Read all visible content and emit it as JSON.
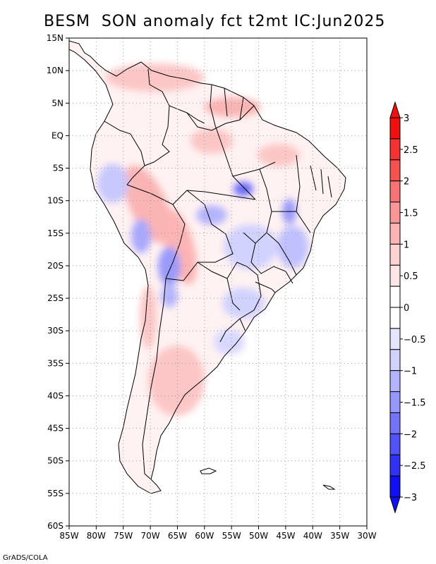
{
  "title": "BESM  SON anomaly fct t2mt IC:Jun2025",
  "credit": "GrADS/COLA",
  "map": {
    "lat_ticks": [
      "15N",
      "10N",
      "5N",
      "EQ",
      "5S",
      "10S",
      "15S",
      "20S",
      "25S",
      "30S",
      "35S",
      "40S",
      "45S",
      "50S",
      "55S",
      "60S"
    ],
    "lon_ticks": [
      "85W",
      "80W",
      "75W",
      "70W",
      "65W",
      "60W",
      "55W",
      "50W",
      "45W",
      "40W",
      "35W",
      "30W"
    ],
    "lat_range": [
      -60,
      15
    ],
    "lon_range": [
      -85,
      -30
    ],
    "grid_spacing_deg": 5,
    "grid_style": "dotted",
    "anomaly_units": "degC"
  },
  "colorbar": {
    "labels": [
      "3",
      "2.5",
      "2",
      "1.5",
      "1",
      "0.5",
      "0",
      "−0.5",
      "−1",
      "−1.5",
      "−2",
      "−2.5",
      "−3"
    ],
    "warm_colors": [
      "#f01010",
      "#f43232",
      "#f65252",
      "#f87474",
      "#fa9696",
      "#fcb4b4",
      "#fdd2d2",
      "#fee6e6",
      "#ffffff"
    ],
    "cold_colors": [
      "#ffffff",
      "#e6e6ff",
      "#d2d2ff",
      "#b4b4fe",
      "#9696fc",
      "#7474fa",
      "#5252f6",
      "#3232f4",
      "#1010f0"
    ]
  }
}
